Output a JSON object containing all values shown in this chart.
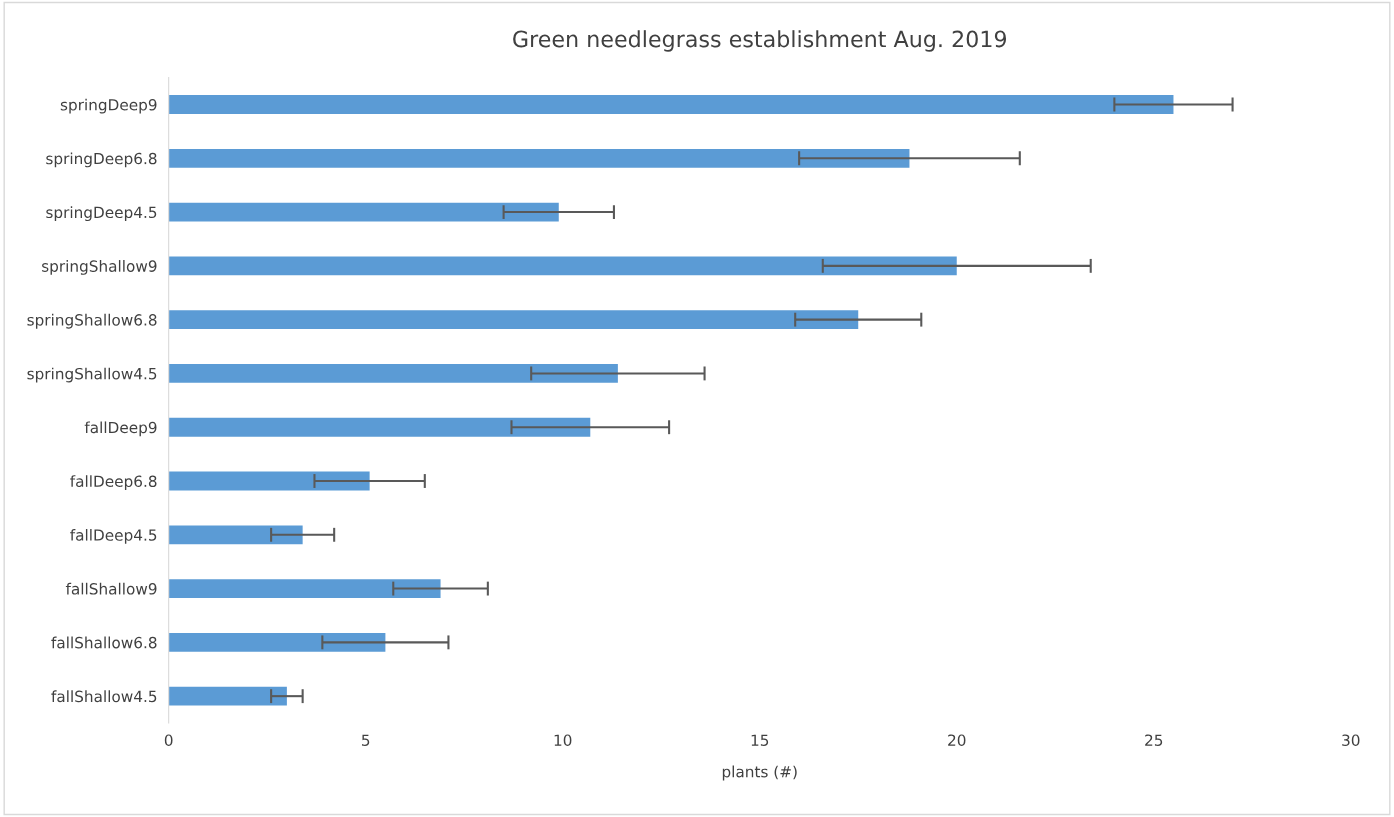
{
  "chart_data": {
    "type": "bar",
    "orientation": "horizontal",
    "title": "Green needlegrass establishment Aug. 2019",
    "xlabel": "plants (#)",
    "categories": [
      "springDeep9",
      "springDeep6.8",
      "springDeep4.5",
      "springShallow9",
      "springShallow6.8",
      "springShallow4.5",
      "fallDeep9",
      "fallDeep6.8",
      "fallDeep4.5",
      "fallShallow9",
      "fallShallow6.8",
      "fallShallow4.5"
    ],
    "values": [
      25.5,
      18.8,
      9.9,
      20.0,
      17.5,
      11.4,
      10.7,
      5.1,
      3.4,
      6.9,
      5.5,
      3.0
    ],
    "errors": [
      1.5,
      2.8,
      1.4,
      3.4,
      1.6,
      2.2,
      2.0,
      1.4,
      0.8,
      1.2,
      1.6,
      0.4
    ],
    "color": "#5b9bd5",
    "xlim": [
      0,
      30
    ],
    "xticks": [
      0,
      5,
      10,
      15,
      20,
      25,
      30
    ],
    "grid": false
  }
}
